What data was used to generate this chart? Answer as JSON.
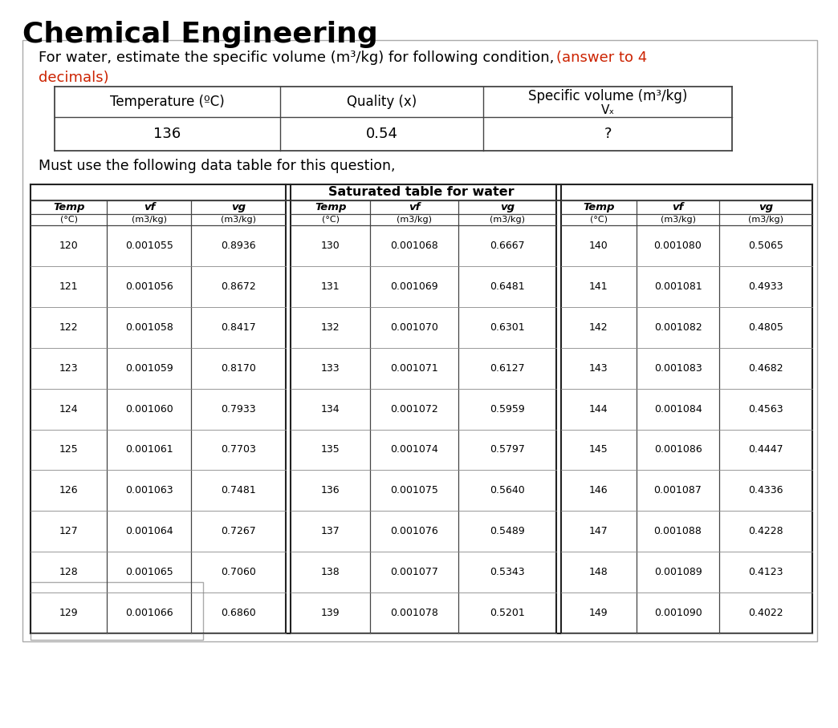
{
  "title": "Chemical Engineering",
  "col1_data": [
    [
      "120",
      "0.001055",
      "0.8936"
    ],
    [
      "121",
      "0.001056",
      "0.8672"
    ],
    [
      "122",
      "0.001058",
      "0.8417"
    ],
    [
      "123",
      "0.001059",
      "0.8170"
    ],
    [
      "124",
      "0.001060",
      "0.7933"
    ],
    [
      "125",
      "0.001061",
      "0.7703"
    ],
    [
      "126",
      "0.001063",
      "0.7481"
    ],
    [
      "127",
      "0.001064",
      "0.7267"
    ],
    [
      "128",
      "0.001065",
      "0.7060"
    ],
    [
      "129",
      "0.001066",
      "0.6860"
    ]
  ],
  "col2_data": [
    [
      "130",
      "0.001068",
      "0.6667"
    ],
    [
      "131",
      "0.001069",
      "0.6481"
    ],
    [
      "132",
      "0.001070",
      "0.6301"
    ],
    [
      "133",
      "0.001071",
      "0.6127"
    ],
    [
      "134",
      "0.001072",
      "0.5959"
    ],
    [
      "135",
      "0.001074",
      "0.5797"
    ],
    [
      "136",
      "0.001075",
      "0.5640"
    ],
    [
      "137",
      "0.001076",
      "0.5489"
    ],
    [
      "138",
      "0.001077",
      "0.5343"
    ],
    [
      "139",
      "0.001078",
      "0.5201"
    ]
  ],
  "col3_data": [
    [
      "140",
      "0.001080",
      "0.5065"
    ],
    [
      "141",
      "0.001081",
      "0.4933"
    ],
    [
      "142",
      "0.001082",
      "0.4805"
    ],
    [
      "143",
      "0.001083",
      "0.4682"
    ],
    [
      "144",
      "0.001084",
      "0.4563"
    ],
    [
      "145",
      "0.001086",
      "0.4447"
    ],
    [
      "146",
      "0.001087",
      "0.4336"
    ],
    [
      "147",
      "0.001088",
      "0.4228"
    ],
    [
      "148",
      "0.001089",
      "0.4123"
    ],
    [
      "149",
      "0.001090",
      "0.4022"
    ]
  ],
  "bg_color": "#ffffff"
}
